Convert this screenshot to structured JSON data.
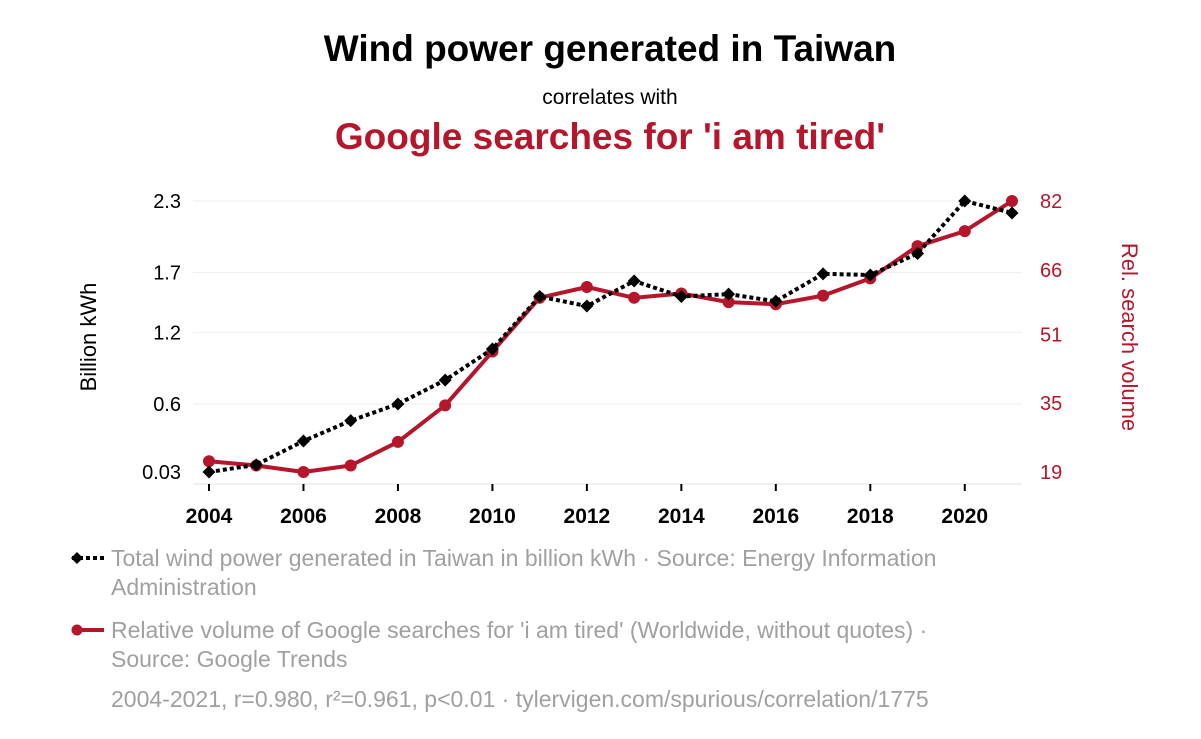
{
  "title": "Wind power generated in Taiwan",
  "subtitle": "correlates with",
  "title2": "Google searches for 'i am tired'",
  "colors": {
    "series1": "#000000",
    "series2": "#b5162b",
    "grid": "#eeeeee",
    "muted": "#a0a0a0"
  },
  "legend": {
    "series1": "Total wind power generated in Taiwan in billion kWh · Source: Energy Information Administration",
    "series2": "Relative volume of Google searches for 'i am tired' (Worldwide, without quotes) · Source: Google Trends"
  },
  "footer": "2004-2021, r=0.980, r²=0.961, p<0.01 · tylervigen.com/spurious/correlation/1775",
  "chart_data": {
    "type": "line",
    "x": [
      2004,
      2005,
      2006,
      2007,
      2008,
      2009,
      2010,
      2011,
      2012,
      2013,
      2014,
      2015,
      2016,
      2017,
      2018,
      2019,
      2020,
      2021
    ],
    "xticks": [
      2004,
      2006,
      2008,
      2010,
      2012,
      2014,
      2016,
      2018,
      2020
    ],
    "ylabel": "Billion kWh",
    "y2label": "Rel. search volume",
    "yticks": [
      "0.03",
      "0.6",
      "1.2",
      "1.7",
      "2.3"
    ],
    "y2ticks": [
      "19",
      "35",
      "51",
      "66",
      "82"
    ],
    "ylim": [
      0.03,
      2.3
    ],
    "y2lim": [
      19,
      82
    ],
    "grid": "horizontal",
    "series": [
      {
        "name": "Total wind power generated in Taiwan in billion kWh",
        "axis": "left",
        "style": "dotted",
        "marker": "diamond",
        "values": [
          0.03,
          0.09,
          0.29,
          0.46,
          0.6,
          0.8,
          1.06,
          1.5,
          1.42,
          1.63,
          1.5,
          1.52,
          1.46,
          1.69,
          1.68,
          1.86,
          2.3,
          2.2
        ]
      },
      {
        "name": "Relative volume of Google searches for 'i am tired'",
        "axis": "right",
        "style": "solid",
        "marker": "circle",
        "values": [
          21.5,
          20.5,
          19,
          20.5,
          26,
          34.5,
          47,
          59.5,
          62,
          59.5,
          60.5,
          58.5,
          58,
          60,
          64,
          71.5,
          75,
          82
        ]
      }
    ]
  }
}
